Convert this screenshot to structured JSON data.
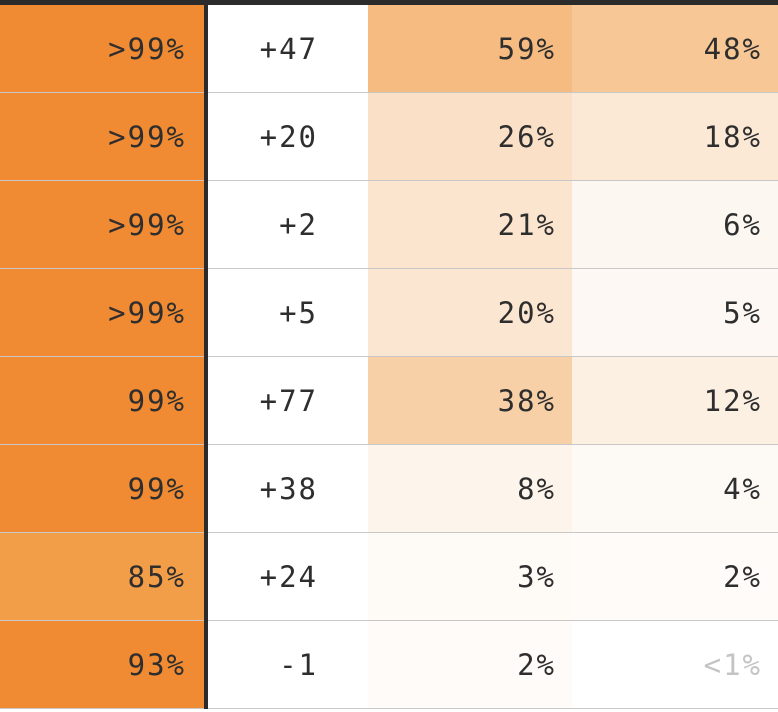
{
  "table": {
    "rows": [
      {
        "col1": ">99%",
        "col2": "+47",
        "col3": "59%",
        "col4": "48%",
        "col1_bg": "#f08a33",
        "col3_bg": "#f5bb80",
        "col4_bg": "#f7c796"
      },
      {
        "col1": ">99%",
        "col2": "+20",
        "col3": "26%",
        "col4": "18%",
        "col1_bg": "#f08a33",
        "col3_bg": "#fae0c6",
        "col4_bg": "#fbe9d6"
      },
      {
        "col1": ">99%",
        "col2": "+2",
        "col3": "21%",
        "col4": "6%",
        "col1_bg": "#f08a33",
        "col3_bg": "#fbe5cf",
        "col4_bg": "#fdf7f1"
      },
      {
        "col1": ">99%",
        "col2": "+5",
        "col3": "20%",
        "col4": "5%",
        "col1_bg": "#f08a33",
        "col3_bg": "#fbe6d1",
        "col4_bg": "#fdf8f3"
      },
      {
        "col1": "99%",
        "col2": "+77",
        "col3": "38%",
        "col4": "12%",
        "col1_bg": "#f08a33",
        "col3_bg": "#f7d0a7",
        "col4_bg": "#fcf0e3"
      },
      {
        "col1": "99%",
        "col2": "+38",
        "col3": "8%",
        "col4": "4%",
        "col1_bg": "#f08a33",
        "col3_bg": "#fdf5ec",
        "col4_bg": "#fdf9f5"
      },
      {
        "col1": "85%",
        "col2": "+24",
        "col3": "3%",
        "col4": "2%",
        "col1_bg": "#f29d48",
        "col3_bg": "#fefaf6",
        "col4_bg": "#fefbf8"
      },
      {
        "col1": "93%",
        "col2": "-1",
        "col3": "2%",
        "col4": "<1%",
        "col1_bg": "#f08a33",
        "col3_bg": "#fefbf8",
        "col4_bg": "#ffffff",
        "col4_muted": true
      }
    ]
  }
}
